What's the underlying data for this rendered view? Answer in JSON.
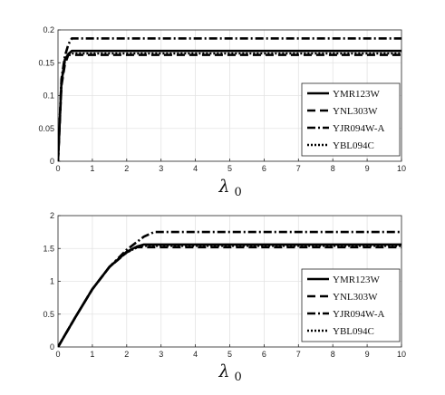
{
  "chart_data": [
    {
      "type": "line",
      "title": "",
      "xlabel": "λ",
      "xlabel_subscript": "0",
      "ylabel": "",
      "xlim": [
        0,
        10
      ],
      "ylim": [
        0,
        0.2
      ],
      "xticks": [
        "0",
        "1",
        "2",
        "3",
        "4",
        "5",
        "6",
        "7",
        "8",
        "9",
        "10"
      ],
      "yticks": [
        "0",
        "0.05",
        "0.1",
        "0.15",
        "0.2"
      ],
      "ytick_values": [
        0,
        0.05,
        0.1,
        0.15,
        0.2
      ],
      "grid": true,
      "legend_position": "bottom-right",
      "series": [
        {
          "name": "YMR123W",
          "style": "solid",
          "x": [
            0,
            0.1,
            0.2,
            0.3,
            0.4,
            10
          ],
          "y": [
            0,
            0.12,
            0.155,
            0.163,
            0.168,
            0.168
          ]
        },
        {
          "name": "YNL303W",
          "style": "dashed",
          "x": [
            0,
            0.1,
            0.2,
            0.3,
            10
          ],
          "y": [
            0,
            0.115,
            0.148,
            0.162,
            0.162
          ]
        },
        {
          "name": "YJR094W-A",
          "style": "dashdot",
          "x": [
            0,
            0.1,
            0.2,
            0.3,
            0.4,
            10
          ],
          "y": [
            0,
            0.125,
            0.16,
            0.178,
            0.187,
            0.187
          ]
        },
        {
          "name": "YBL094C",
          "style": "dotted",
          "x": [
            0,
            0.1,
            0.2,
            0.3,
            10
          ],
          "y": [
            0,
            0.118,
            0.152,
            0.164,
            0.164
          ]
        }
      ]
    },
    {
      "type": "line",
      "title": "",
      "xlabel": "λ",
      "xlabel_subscript": "0",
      "ylabel": "",
      "xlim": [
        0,
        10
      ],
      "ylim": [
        0,
        2
      ],
      "xticks": [
        "0",
        "1",
        "2",
        "3",
        "4",
        "5",
        "6",
        "7",
        "8",
        "9",
        "10"
      ],
      "yticks": [
        "0",
        "0.5",
        "1",
        "1.5",
        "2"
      ],
      "ytick_values": [
        0,
        0.5,
        1,
        1.5,
        2
      ],
      "grid": true,
      "legend_position": "bottom-right",
      "series": [
        {
          "name": "YMR123W",
          "style": "solid",
          "x": [
            0,
            0.5,
            1,
            1.5,
            2,
            2.3,
            2.5,
            10
          ],
          "y": [
            0,
            0.45,
            0.88,
            1.22,
            1.45,
            1.53,
            1.56,
            1.56
          ]
        },
        {
          "name": "YNL303W",
          "style": "dashed",
          "x": [
            0,
            0.5,
            1,
            1.5,
            2,
            2.3,
            10
          ],
          "y": [
            0,
            0.45,
            0.88,
            1.22,
            1.44,
            1.52,
            1.52
          ]
        },
        {
          "name": "YJR094W-A",
          "style": "dashdot",
          "x": [
            0,
            0.5,
            1,
            1.5,
            2,
            2.5,
            2.8,
            10
          ],
          "y": [
            0,
            0.45,
            0.88,
            1.22,
            1.48,
            1.68,
            1.75,
            1.75
          ]
        },
        {
          "name": "YBL094C",
          "style": "dotted",
          "x": [
            0,
            0.5,
            1,
            1.5,
            2,
            2.4,
            10
          ],
          "y": [
            0,
            0.45,
            0.88,
            1.22,
            1.44,
            1.54,
            1.54
          ]
        }
      ]
    }
  ]
}
